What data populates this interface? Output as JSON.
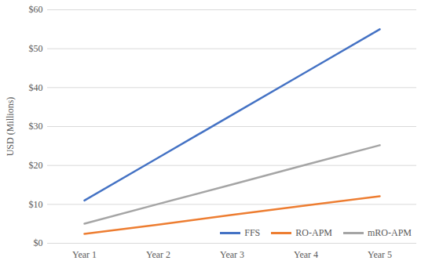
{
  "chart_data": {
    "type": "line",
    "y_label": "USD (Millions)",
    "categories": [
      "Year 1",
      "Year 2",
      "Year 3",
      "Year 4",
      "Year 5"
    ],
    "series": [
      {
        "name": "FFS",
        "color": "#4472c4",
        "values": [
          11,
          22,
          33,
          44,
          55
        ]
      },
      {
        "name": "RO-APM",
        "color": "#ed7d31",
        "values": [
          2.4,
          4.8,
          7.3,
          9.7,
          12.1
        ]
      },
      {
        "name": "mRO-APM",
        "color": "#a5a5a5",
        "values": [
          5.05,
          10.1,
          15.1,
          20.2,
          25.2
        ]
      }
    ],
    "ylim": [
      0,
      60
    ],
    "yticks": [
      {
        "value": 0,
        "label": "$0"
      },
      {
        "value": 10,
        "label": "$10"
      },
      {
        "value": 20,
        "label": "$20"
      },
      {
        "value": 30,
        "label": "$30"
      },
      {
        "value": 40,
        "label": "$40"
      },
      {
        "value": 50,
        "label": "$50"
      },
      {
        "value": 60,
        "label": "$60"
      }
    ],
    "grid": true,
    "legend": "bottom-right"
  }
}
